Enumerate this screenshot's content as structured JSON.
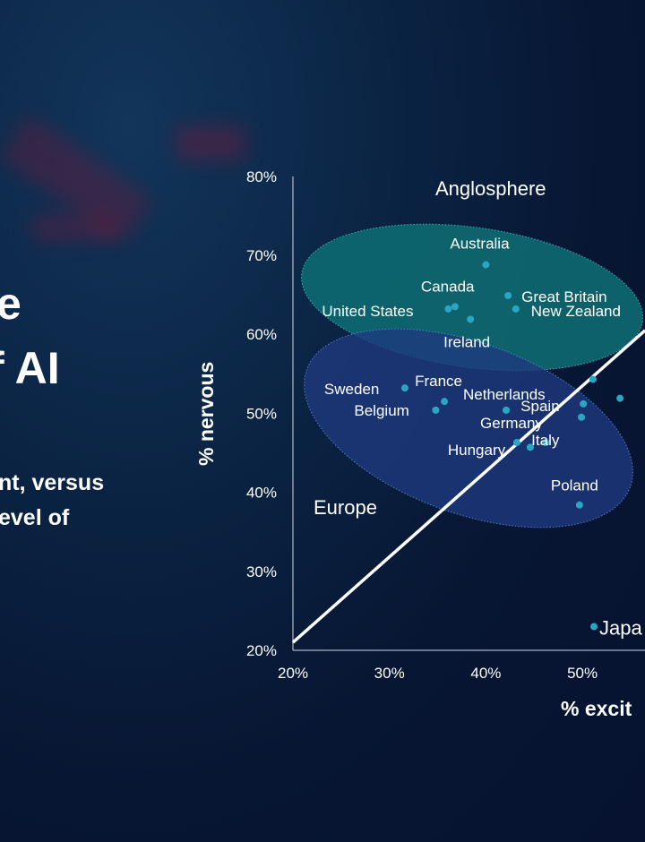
{
  "left_panel": {
    "title_lines": [
      "e",
      "f AI"
    ],
    "subtitle_lines": [
      "nt, versus",
      "evel of"
    ]
  },
  "chart_data": {
    "type": "scatter",
    "xlabel": "% excit",
    "ylabel": "% nervous",
    "xlim": [
      20,
      60
    ],
    "ylim": [
      20,
      80
    ],
    "x_ticks": [
      "20%",
      "30%",
      "40%",
      "50%"
    ],
    "y_ticks": [
      "20%",
      "30%",
      "40%",
      "50%",
      "60%",
      "70%",
      "80%"
    ],
    "grid": false,
    "point_color": "#2aa6c4",
    "groups": [
      {
        "label": "Anglosphere",
        "fill": "#0e6f74"
      },
      {
        "label": "Europe",
        "fill": "#1e3a7e"
      }
    ],
    "reference_line": {
      "from": [
        20,
        21
      ],
      "to": [
        56.5,
        60.5
      ],
      "color": "#ffffff"
    },
    "points": [
      {
        "label": "Australia",
        "x": 40.0,
        "y": 68.8
      },
      {
        "label": "Canada",
        "x": 36.8,
        "y": 63.5
      },
      {
        "label": "United States",
        "x": 36.1,
        "y": 63.2
      },
      {
        "label": "Ireland",
        "x": 38.4,
        "y": 61.9
      },
      {
        "label": "Great Britain",
        "x": 42.3,
        "y": 64.9
      },
      {
        "label": "New Zealand",
        "x": 43.1,
        "y": 63.2
      },
      {
        "label": "Sweden",
        "x": 31.6,
        "y": 53.2
      },
      {
        "label": "France",
        "x": 35.7,
        "y": 51.5
      },
      {
        "label": "Belgium",
        "x": 34.8,
        "y": 50.4
      },
      {
        "label": "Netherlands",
        "x": 42.1,
        "y": 50.4
      },
      {
        "label": "Spain",
        "x": 50.1,
        "y": 51.2
      },
      {
        "label": "Germany",
        "x": 49.9,
        "y": 49.5
      },
      {
        "label": "Hungary",
        "x": 43.2,
        "y": 46.3
      },
      {
        "label": "",
        "x": 44.6,
        "y": 45.7
      },
      {
        "label": "Italy",
        "x": 46.2,
        "y": 46.3
      },
      {
        "label": "Poland",
        "x": 49.7,
        "y": 38.4
      },
      {
        "label": "Japa",
        "x": 51.2,
        "y": 23.0
      },
      {
        "label": "",
        "x": 51.1,
        "y": 54.3
      },
      {
        "label": "",
        "x": 53.9,
        "y": 51.9
      }
    ]
  }
}
